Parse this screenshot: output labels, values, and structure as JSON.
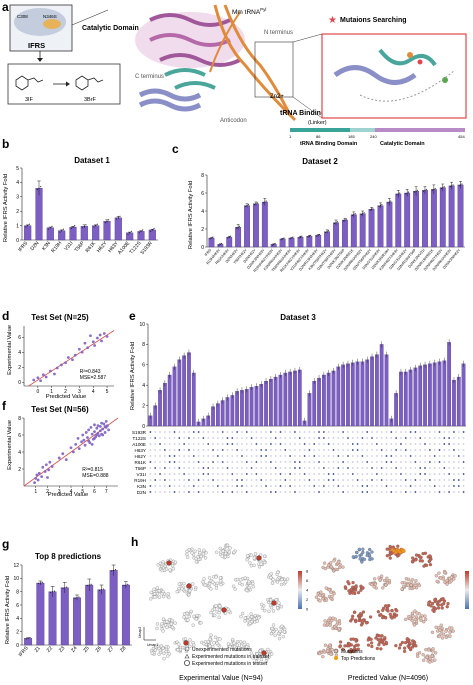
{
  "panels": {
    "a": {
      "letter": "a",
      "catalytic_label": "Catalytic Domain",
      "protein_label": "IFRS",
      "res1": "C308",
      "res2": "N346S",
      "sub1": "3IF",
      "sub2": "3BrF",
      "trna_label": "Mm tRNA",
      "trna_sup": "Pyl",
      "n_term": "N terminus",
      "c_term": "C terminus",
      "zn": "Zn2+",
      "anticodon": "Anticodon",
      "trna_binding": "tRNA Binding Domain",
      "linker": "(Linker)",
      "mut_search": "Mutaions Searching",
      "domain_ticks": [
        "1",
        "86",
        "185",
        "240",
        "454"
      ],
      "domain_names": [
        "tRNA Binding Domain",
        "Catalytic Domain"
      ]
    },
    "b": {
      "letter": "b"
    },
    "c": {
      "letter": "c"
    },
    "d": {
      "letter": "d"
    },
    "e": {
      "letter": "e"
    },
    "f": {
      "letter": "f"
    },
    "g": {
      "letter": "g"
    },
    "h": {
      "letter": "h",
      "legend_left": [
        "Unexperimented mutations",
        "Experimented mutations in trainset",
        "Experimented mutations in testset"
      ],
      "legend_right": [
        "Mutations",
        "Top Predictions"
      ],
      "axis1": "Umap1",
      "axis2": "Umap2",
      "caption_left": "Experimental Value (N=94)",
      "caption_right": "Predicted Value (N=4096)",
      "cbar_ticks": [
        "0",
        "2",
        "4",
        "6",
        "8"
      ]
    }
  },
  "colors": {
    "bar": "#7d5fc4",
    "bar_edge": "#3e2a7a",
    "fit": "#d9534f",
    "point": "#7d5fc4",
    "high": "#c0392b",
    "low": "#4a72b8",
    "mid": "#e8e8e8"
  },
  "chart_data": [
    {
      "id": "b",
      "type": "bar",
      "title": "Dataset 1",
      "ylabel": "Relative IFRS Activity Fold",
      "ylim": [
        0,
        5
      ],
      "yticks": [
        0,
        1,
        2,
        3,
        4,
        5
      ],
      "categories": [
        "IFRS",
        "D2N",
        "K3N",
        "R19H",
        "V31I",
        "T56P",
        "R61K",
        "H62Y",
        "H63Y",
        "A100E",
        "T122S",
        "S193R"
      ],
      "values": [
        1.0,
        3.6,
        0.85,
        0.65,
        0.9,
        0.95,
        1.0,
        1.3,
        1.55,
        0.5,
        0.6,
        0.7
      ],
      "errors": [
        0.05,
        0.5,
        0.05,
        0.05,
        0.05,
        0.1,
        0.05,
        0.1,
        0.1,
        0.05,
        0.05,
        0.05
      ]
    },
    {
      "id": "c",
      "type": "bar",
      "title": "Dataset 2",
      "ylabel": "Relative IFRS Activity Fold",
      "ylim": [
        0,
        8
      ],
      "yticks": [
        0,
        2,
        4,
        6,
        8
      ],
      "categories": [
        "IFRS",
        "R19H/H63Y",
        "R61K/H63Y",
        "D2N/H63Y",
        "T56P/H62Y",
        "D2N/H62Y",
        "D2N/K3N/H63Y",
        "R19H/H62Y/H63Y",
        "K3N/R61K/H63Y",
        "T56P/R61K/H63Y",
        "R61K/H62Y/H63Y",
        "V31I/H62Y/H63Y",
        "D2N/R19H/H63Y",
        "K3N/T56P/H62Y",
        "D2N/T56P/H63Y",
        "D2N/K3N/T56P",
        "D2N/K3N/R61K",
        "D2N/R61K/H62Y",
        "D2N/T56P/H62Y",
        "D2N/V31I/H63Y",
        "D2N/K3N/R19H",
        "K3N/H62Y/H63Y",
        "D2N/V31I/H62Y",
        "D2N/R19H/T56P",
        "D2N/K3N/V31I",
        "D2N/R19H/R61K",
        "D2N/H62Y/H63Y",
        "D2N/R61K/H63Y",
        "D2N/K3N/H62Y"
      ],
      "values": [
        1.0,
        0.3,
        1.1,
        2.2,
        4.6,
        4.8,
        5.0,
        0.3,
        0.9,
        1.0,
        1.1,
        1.2,
        1.3,
        1.7,
        2.7,
        3.0,
        3.6,
        3.7,
        4.2,
        4.6,
        5.0,
        5.9,
        6.0,
        6.2,
        6.3,
        6.4,
        6.6,
        6.8,
        6.9
      ],
      "errors": [
        0.05,
        0.05,
        0.1,
        0.3,
        0.2,
        0.2,
        0.4,
        0.05,
        0.05,
        0.05,
        0.1,
        0.1,
        0.1,
        0.2,
        0.3,
        0.2,
        0.3,
        0.3,
        0.2,
        0.3,
        0.4,
        0.4,
        0.4,
        0.5,
        0.4,
        0.5,
        0.4,
        0.4,
        0.4
      ]
    },
    {
      "id": "d",
      "type": "scatter",
      "title": "Test Set (N=25)",
      "xlabel": "Predicted Value",
      "ylabel": "Experimental Value",
      "xlim": [
        -1,
        5.5
      ],
      "ylim": [
        -0.5,
        7.5
      ],
      "xticks": [
        0,
        1,
        2,
        3,
        4,
        5
      ],
      "yticks": [
        0,
        2,
        4,
        6
      ],
      "stats": [
        "R²=0.843",
        "MSE=2.587"
      ],
      "x": [
        -0.3,
        0.0,
        0.2,
        0.4,
        0.6,
        0.9,
        1.2,
        1.4,
        1.7,
        2.0,
        2.2,
        2.5,
        2.7,
        3.0,
        3.2,
        3.4,
        3.6,
        3.8,
        4.0,
        4.1,
        4.3,
        4.5,
        4.6,
        4.8,
        5.0
      ],
      "y": [
        0.3,
        0.6,
        0.2,
        1.0,
        0.7,
        1.5,
        1.1,
        1.9,
        2.3,
        2.6,
        3.3,
        3.0,
        3.6,
        4.4,
        4.0,
        5.2,
        4.6,
        6.2,
        5.4,
        4.9,
        5.9,
        6.3,
        5.5,
        6.5,
        6.1
      ],
      "fit": {
        "slope": 1.2,
        "intercept": 0.3
      }
    },
    {
      "id": "f",
      "type": "scatter",
      "title": "Test Set (N=56)",
      "xlabel": "Predicted Value",
      "ylabel": "Experimental Value",
      "xlim": [
        0,
        8
      ],
      "ylim": [
        0,
        8
      ],
      "xticks": [
        1,
        2,
        3,
        4,
        5,
        6,
        7
      ],
      "yticks": [
        2,
        4,
        6,
        8
      ],
      "stats": [
        "R²=0.815",
        "MSE=0.888"
      ],
      "x": [
        0.9,
        1.0,
        1.1,
        1.2,
        1.3,
        1.5,
        1.6,
        1.8,
        1.9,
        2.0,
        2.1,
        2.2,
        2.4,
        3.0,
        3.3,
        3.6,
        4.0,
        4.2,
        4.4,
        4.6,
        4.7,
        4.9,
        5.0,
        5.1,
        5.2,
        5.3,
        5.4,
        5.5,
        5.6,
        5.7,
        5.8,
        5.9,
        6.0,
        6.0,
        6.1,
        6.2,
        6.3,
        6.3,
        6.4,
        6.5,
        6.5,
        6.6,
        6.7,
        6.7,
        6.8,
        6.9,
        7.0,
        7.0,
        7.1,
        7.2,
        5.5,
        6.0,
        6.6,
        5.8,
        6.2,
        6.9
      ],
      "y": [
        0.4,
        0.9,
        1.3,
        0.7,
        1.5,
        1.1,
        2.2,
        1.7,
        2.5,
        1.0,
        1.9,
        2.8,
        2.3,
        3.3,
        3.8,
        3.1,
        4.5,
        4.0,
        4.9,
        5.6,
        4.4,
        5.2,
        6.0,
        5.4,
        4.8,
        6.3,
        5.7,
        6.6,
        5.1,
        6.9,
        6.1,
        5.5,
        7.2,
        6.4,
        5.8,
        6.8,
        7.1,
        6.2,
        5.9,
        7.0,
        6.5,
        7.4,
        6.0,
        6.7,
        7.3,
        6.3,
        7.6,
        6.9,
        7.1,
        6.6,
        5.3,
        5.6,
        6.1,
        4.9,
        6.0,
        7.0
      ],
      "fit": {
        "slope": 1.0,
        "intercept": 0.0
      }
    },
    {
      "id": "e",
      "type": "bar",
      "title": "Dataset 3",
      "ylabel": "Relative IFRS Activity Fold",
      "ylim": [
        0,
        10
      ],
      "yticks": [
        0,
        2,
        4,
        6,
        8,
        10
      ],
      "values": [
        1.0,
        2.0,
        3.5,
        4.2,
        5.0,
        5.8,
        6.5,
        6.9,
        7.2,
        5.2,
        0.4,
        0.7,
        1.0,
        1.9,
        2.2,
        2.5,
        2.8,
        3.0,
        3.4,
        3.5,
        3.6,
        3.8,
        3.9,
        4.1,
        4.4,
        4.6,
        4.8,
        5.0,
        5.2,
        5.3,
        5.4,
        5.5,
        0.5,
        3.2,
        4.4,
        4.7,
        5.0,
        5.2,
        5.4,
        5.8,
        6.0,
        6.1,
        6.2,
        6.3,
        6.3,
        6.5,
        6.8,
        7.0,
        8.0,
        7.0,
        0.7,
        3.2,
        5.3,
        5.3,
        5.5,
        5.7,
        5.9,
        6.0,
        6.1,
        6.2,
        6.3,
        6.4,
        8.2,
        4.5,
        4.8,
        6.1
      ],
      "rows": [
        "S193R",
        "T122S",
        "A100E",
        "H63Y",
        "H62Y",
        "R61K",
        "T56P",
        "V31I",
        "R19H",
        "K3N",
        "D2N"
      ]
    },
    {
      "id": "g",
      "type": "bar",
      "title": "Top 8 predictions",
      "ylabel": "Relative IFRS Activity Fold",
      "ylim": [
        0,
        12
      ],
      "yticks": [
        0,
        2,
        4,
        6,
        8,
        10,
        12
      ],
      "categories": [
        "IFRS",
        "Z1",
        "Z2",
        "Z3",
        "Z4",
        "Z5",
        "Z6",
        "Z7",
        "Z8"
      ],
      "values": [
        1.0,
        9.3,
        8.0,
        8.6,
        7.1,
        9.0,
        8.3,
        11.2,
        9.0
      ],
      "errors": [
        0.1,
        0.3,
        0.8,
        0.8,
        0.4,
        0.9,
        0.7,
        0.8,
        0.5
      ]
    }
  ]
}
